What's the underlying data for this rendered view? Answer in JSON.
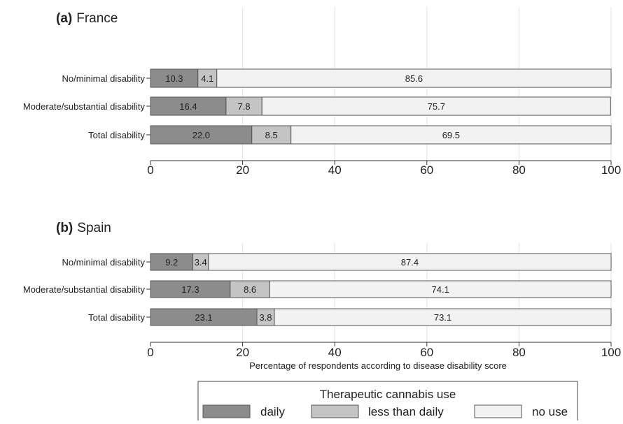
{
  "chart_data": [
    {
      "type": "bar",
      "stacked": true,
      "orientation": "horizontal",
      "panel_label": "(a)",
      "title": "France",
      "categories": [
        "No/minimal disability",
        "Moderate/substantial disability",
        "Total disability"
      ],
      "series": [
        {
          "name": "daily",
          "values": [
            10.3,
            16.4,
            22.0
          ],
          "labels": [
            "10.3",
            "16.4",
            "22.0"
          ],
          "color": "#8c8c8c"
        },
        {
          "name": "less than daily",
          "values": [
            4.1,
            7.8,
            8.5
          ],
          "labels": [
            "4.1",
            "7.8",
            "8.5"
          ],
          "color": "#c4c4c4"
        },
        {
          "name": "no use",
          "values": [
            85.6,
            75.7,
            69.5
          ],
          "labels": [
            "85.6",
            "75.7",
            "69.5"
          ],
          "color": "#f2f2f2"
        }
      ],
      "xlim": [
        0,
        100
      ],
      "xticks": [
        0,
        20,
        40,
        60,
        80,
        100
      ],
      "xtick_labels": [
        "0",
        "20",
        "40",
        "60",
        "80",
        "100"
      ],
      "xlabel": "",
      "grid": "vertical"
    },
    {
      "type": "bar",
      "stacked": true,
      "orientation": "horizontal",
      "panel_label": "(b)",
      "title": "Spain",
      "categories": [
        "No/minimal disability",
        "Moderate/substantial disability",
        "Total disability"
      ],
      "series": [
        {
          "name": "daily",
          "values": [
            9.2,
            17.3,
            23.1
          ],
          "labels": [
            "9.2",
            "17.3",
            "23.1"
          ],
          "color": "#8c8c8c"
        },
        {
          "name": "less than daily",
          "values": [
            3.4,
            8.6,
            3.8
          ],
          "labels": [
            "3.4",
            "8.6",
            "3.8"
          ],
          "color": "#c4c4c4"
        },
        {
          "name": "no use",
          "values": [
            87.4,
            74.1,
            73.1
          ],
          "labels": [
            "87.4",
            "74.1",
            "73.1"
          ],
          "color": "#f2f2f2"
        }
      ],
      "xlim": [
        0,
        100
      ],
      "xticks": [
        0,
        20,
        40,
        60,
        80,
        100
      ],
      "xtick_labels": [
        "0",
        "20",
        "40",
        "60",
        "80",
        "100"
      ],
      "xlabel": "Percentage of respondents according to disease disability score",
      "grid": "vertical"
    }
  ],
  "legend": {
    "title": "Therapeutic cannabis use",
    "placement": "bottom-center",
    "items": [
      {
        "label": "daily",
        "color": "#8c8c8c"
      },
      {
        "label": "less than daily",
        "color": "#c4c4c4"
      },
      {
        "label": "no use",
        "color": "#f2f2f2"
      }
    ]
  }
}
